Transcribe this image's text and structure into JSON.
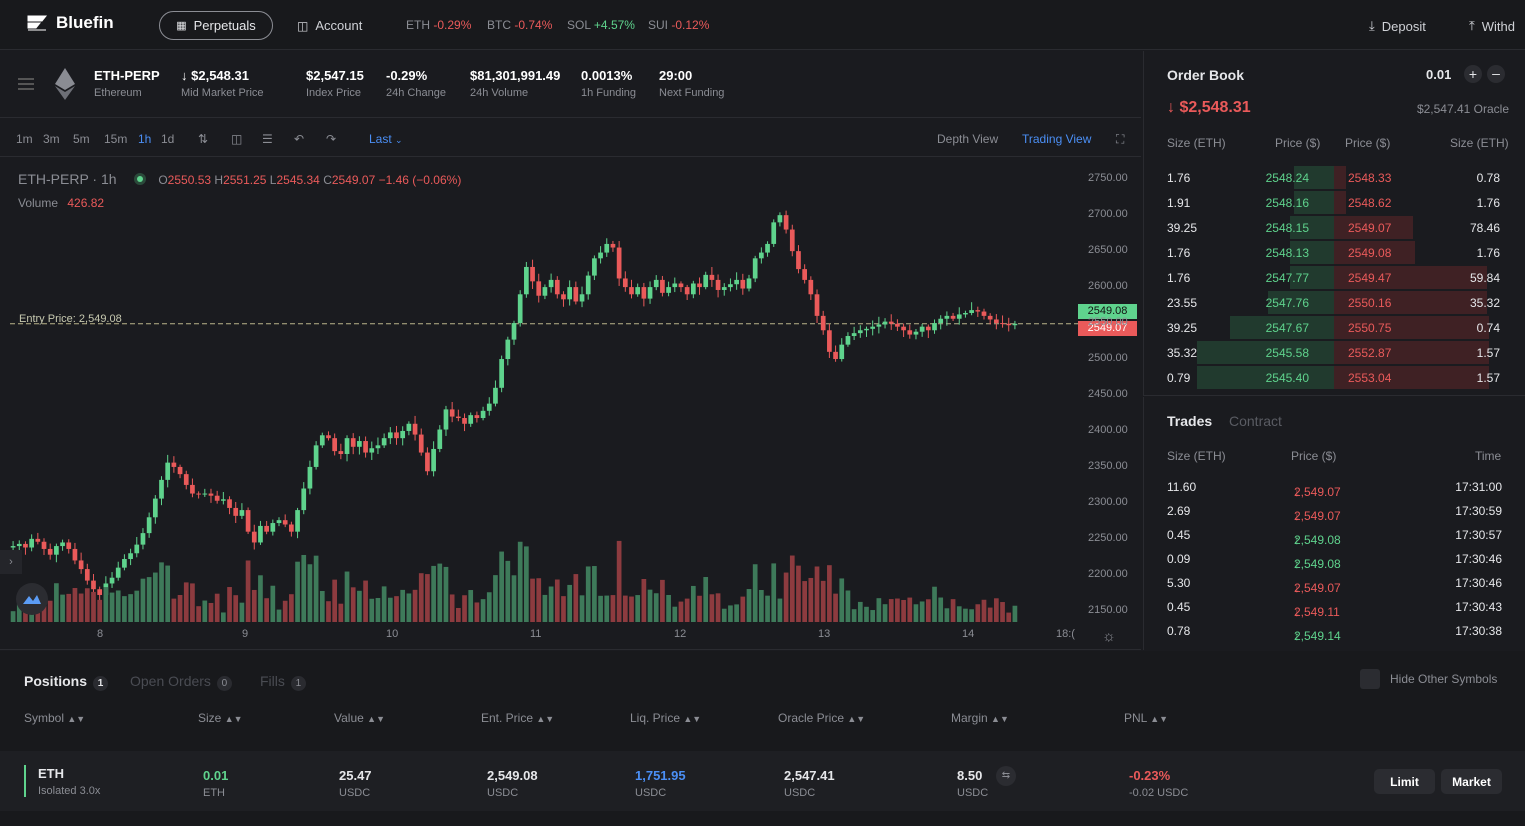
{
  "header": {
    "brand": "Bluefin",
    "perpetuals": "Perpetuals",
    "account": "Account",
    "deposit": "Deposit",
    "withdraw": "Withd",
    "tickers": [
      {
        "sym": "ETH",
        "chg": "-0.29%",
        "up": false
      },
      {
        "sym": "BTC",
        "chg": "-0.74%",
        "up": false
      },
      {
        "sym": "SOL",
        "chg": "+4.57%",
        "up": true
      },
      {
        "sym": "SUI",
        "chg": "-0.12%",
        "up": false
      }
    ]
  },
  "market": {
    "symbol": "ETH-PERP",
    "name": "Ethereum",
    "mid_price": "$2,548.31",
    "mid_label": "Mid Market Price",
    "index_price": "$2,547.15",
    "index_label": "Index Price",
    "change": "-0.29%",
    "change_label": "24h Change",
    "volume": "$81,301,991.49",
    "volume_label": "24h Volume",
    "funding": "0.0013%",
    "funding_label": "1h Funding",
    "next_funding": "29:00",
    "next_label": "Next Funding"
  },
  "toolbar": {
    "timeframes": [
      "1m",
      "3m",
      "5m",
      "15m",
      "1h",
      "1d"
    ],
    "active": "1h",
    "price_type": "Last",
    "depth_view": "Depth View",
    "trading_view": "Trading View"
  },
  "chart": {
    "title": "ETH-PERP · 1h",
    "open": "2550.53",
    "high": "2551.25",
    "low": "2545.34",
    "close": "2549.07",
    "change": "−1.46 (−0.06%)",
    "volume_label": "Volume",
    "volume": "426.82",
    "entry_label": "Entry Price: 2,549.08",
    "entry_tag": "2549.08",
    "last_tag": "2549.07",
    "y_ticks": [
      "2750.00",
      "2700.00",
      "2650.00",
      "2600.00",
      "2550.00",
      "2500.00",
      "2450.00",
      "2400.00",
      "2350.00",
      "2300.00",
      "2250.00",
      "2200.00",
      "2150.00"
    ],
    "x_ticks": [
      "8",
      "9",
      "10",
      "11",
      "12",
      "13",
      "14",
      "18:("
    ]
  },
  "chart_data": {
    "type": "candlestick",
    "ylim": [
      2140,
      2760
    ],
    "closes": [
      2240,
      2243,
      2238,
      2250,
      2246,
      2236,
      2228,
      2240,
      2245,
      2236,
      2220,
      2208,
      2192,
      2180,
      2172,
      2188,
      2196,
      2210,
      2222,
      2230,
      2242,
      2258,
      2280,
      2306,
      2332,
      2356,
      2350,
      2340,
      2325,
      2313,
      2312,
      2313,
      2310,
      2303,
      2305,
      2293,
      2282,
      2290,
      2260,
      2245,
      2268,
      2260,
      2272,
      2276,
      2270,
      2260,
      2290,
      2320,
      2350,
      2380,
      2394,
      2390,
      2372,
      2368,
      2390,
      2378,
      2386,
      2370,
      2376,
      2380,
      2390,
      2398,
      2390,
      2400,
      2410,
      2395,
      2370,
      2344,
      2375,
      2402,
      2430,
      2420,
      2418,
      2410,
      2422,
      2418,
      2428,
      2438,
      2460,
      2500,
      2527,
      2550,
      2590,
      2628,
      2608,
      2588,
      2600,
      2610,
      2590,
      2583,
      2600,
      2580,
      2590,
      2616,
      2640,
      2648,
      2660,
      2655,
      2612,
      2600,
      2590,
      2600,
      2584,
      2600,
      2610,
      2592,
      2600,
      2605,
      2600,
      2590,
      2605,
      2600,
      2617,
      2610,
      2596,
      2600,
      2604,
      2610,
      2598,
      2612,
      2640,
      2648,
      2660,
      2690,
      2700,
      2680,
      2650,
      2625,
      2610,
      2590,
      2560,
      2540,
      2510,
      2500,
      2520,
      2532,
      2536,
      2540,
      2542,
      2545,
      2548,
      2552,
      2549,
      2545,
      2540,
      2534,
      2538,
      2545,
      2540,
      2550,
      2556,
      2560,
      2556,
      2562,
      2564,
      2568,
      2566,
      2560,
      2555,
      2550,
      2549,
      2547,
      2549
    ]
  },
  "orderbook": {
    "title": "Order Book",
    "tick": "0.01",
    "price": "$2,548.31",
    "oracle": "$2,547.41 Oracle",
    "headers": [
      "Size (ETH)",
      "Price ($)",
      "Price ($)",
      "Size (ETH)"
    ],
    "rows": [
      {
        "bs": "1.76",
        "bp": "2548.24",
        "ap": "2548.33",
        "as": "0.78",
        "bw": 0.21,
        "aw": 0.07
      },
      {
        "bs": "1.91",
        "bp": "2548.16",
        "ap": "2548.62",
        "as": "1.76",
        "bw": 0.21,
        "aw": 0.07
      },
      {
        "bs": "39.25",
        "bp": "2548.15",
        "ap": "2549.07",
        "as": "78.46",
        "bw": 0.23,
        "aw": 0.45
      },
      {
        "bs": "1.76",
        "bp": "2548.13",
        "ap": "2549.08",
        "as": "1.76",
        "bw": 0.23,
        "aw": 0.46
      },
      {
        "bs": "1.76",
        "bp": "2547.77",
        "ap": "2549.47",
        "as": "59.84",
        "bw": 0.23,
        "aw": 0.87
      },
      {
        "bs": "23.55",
        "bp": "2547.76",
        "ap": "2550.16",
        "as": "35.32",
        "bw": 0.35,
        "aw": 0.87
      },
      {
        "bs": "39.25",
        "bp": "2547.67",
        "ap": "2550.75",
        "as": "0.74",
        "bw": 0.55,
        "aw": 0.88
      },
      {
        "bs": "35.32",
        "bp": "2545.58",
        "ap": "2552.87",
        "as": "1.57",
        "bw": 0.72,
        "aw": 0.88
      },
      {
        "bs": "0.79",
        "bp": "2545.40",
        "ap": "2553.04",
        "as": "1.57",
        "bw": 0.72,
        "aw": 0.88
      }
    ]
  },
  "trades": {
    "tab_trades": "Trades",
    "tab_contract": "Contract",
    "headers": [
      "Size (ETH)",
      "Price ($)",
      "Time"
    ],
    "rows": [
      {
        "size": "11.60",
        "price": "2,549.07",
        "time": "17:31:00",
        "up": false
      },
      {
        "size": "2.69",
        "price": "2,549.07",
        "time": "17:30:59",
        "up": false
      },
      {
        "size": "0.45",
        "price": "2,549.08",
        "time": "17:30:57",
        "up": true
      },
      {
        "size": "0.09",
        "price": "2,549.08",
        "time": "17:30:46",
        "up": true
      },
      {
        "size": "5.30",
        "price": "2,549.07",
        "time": "17:30:46",
        "up": false
      },
      {
        "size": "0.45",
        "price": "2,549.11",
        "time": "17:30:43",
        "up": false
      },
      {
        "size": "0.78",
        "price": "2,549.14",
        "time": "17:30:38",
        "up": true
      }
    ]
  },
  "positions": {
    "tab_positions": "Positions",
    "count_positions": "1",
    "tab_orders": "Open Orders",
    "count_orders": "0",
    "tab_fills": "Fills",
    "count_fills": "1",
    "hide_other": "Hide Other Symbols",
    "headers": [
      "Symbol",
      "Size",
      "Value",
      "Ent. Price",
      "Liq. Price",
      "Oracle Price",
      "Margin",
      "PNL"
    ],
    "row": {
      "symbol": "ETH",
      "mode": "Isolated 3.0x",
      "size": "0.01",
      "size_unit": "ETH",
      "value": "25.47",
      "value_unit": "USDC",
      "entry": "2,549.08",
      "entry_unit": "USDC",
      "liq": "1,751.95",
      "liq_unit": "USDC",
      "oracle": "2,547.41",
      "oracle_unit": "USDC",
      "margin": "8.50",
      "margin_unit": "USDC",
      "pnl": "-0.23%",
      "pnl_usdc": "-0.02 USDC"
    },
    "limit_button": "Limit",
    "market_button": "Market"
  }
}
